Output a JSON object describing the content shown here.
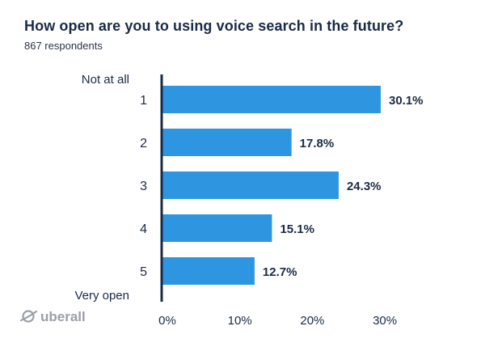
{
  "chart_data": {
    "type": "bar",
    "orientation": "horizontal",
    "title": "How open are you to using voice search in the future?",
    "subtitle": "867 respondents",
    "categories": [
      "1",
      "2",
      "3",
      "4",
      "5"
    ],
    "values": [
      30.1,
      17.8,
      24.3,
      15.1,
      12.7
    ],
    "data_labels": [
      "30.1%",
      "17.8%",
      "24.3%",
      "15.1%",
      "12.7%"
    ],
    "scale_top_label": "Not at all",
    "scale_bottom_label": "Very open",
    "xlim": [
      0,
      32
    ],
    "x_ticks": [
      0,
      10,
      20,
      30
    ],
    "x_tick_labels": [
      "0%",
      "10%",
      "20%",
      "30%"
    ],
    "grid": false,
    "legend": "none",
    "bar_color": "#2e96e0",
    "axis_color": "#1b2a44",
    "text_color": "#1b2a44"
  },
  "brand": {
    "logo_text": "uberall",
    "logo_color": "#9aa0a6"
  }
}
